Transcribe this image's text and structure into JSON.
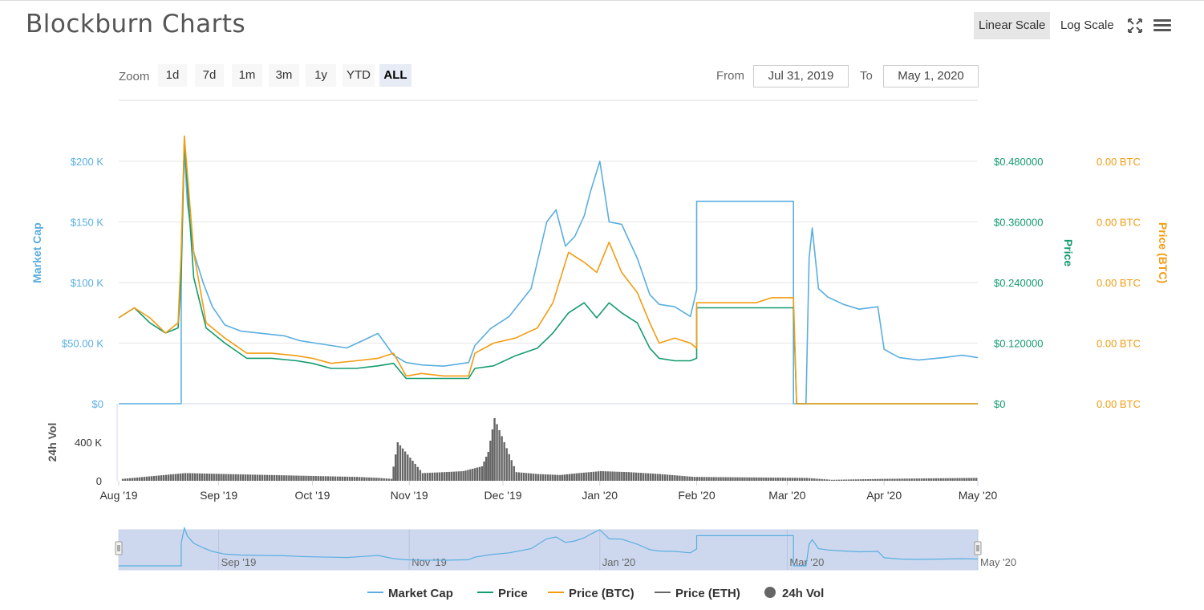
{
  "header": {
    "title": "Blockburn Charts",
    "linear_scale": "Linear Scale",
    "log_scale": "Log Scale",
    "fullscreen_icon": "fullscreen-icon",
    "menu_icon": "hamburger-menu-icon"
  },
  "range_selector": {
    "zoom_label": "Zoom",
    "buttons": [
      "1d",
      "7d",
      "1m",
      "3m",
      "1y",
      "YTD",
      "ALL"
    ],
    "selected": "ALL",
    "from_label": "From",
    "from_value": "Jul 31, 2019",
    "to_label": "To",
    "to_value": "May 1, 2020"
  },
  "colors": {
    "market_cap": "#5aaee0",
    "price": "#139b6d",
    "price_btc": "#f39c12",
    "price_eth": "#666666",
    "vol": "#666666",
    "navigator_fill": "#cdd8ee"
  },
  "chart_data": {
    "type": "line",
    "x_axis": {
      "start": "2019-07-31",
      "end": "2020-05-01",
      "tick_labels": [
        "Aug '19",
        "Sep '19",
        "Oct '19",
        "Nov '19",
        "Dec '19",
        "Jan '20",
        "Feb '20",
        "Mar '20",
        "Apr '20",
        "May '20"
      ]
    },
    "y_axes": {
      "market_cap": {
        "title": "Market Cap",
        "ticks": [
          "$0",
          "$50.00 K",
          "$100 K",
          "$150 K",
          "$200 K"
        ],
        "range": [
          0,
          200000
        ]
      },
      "price": {
        "title": "Price",
        "ticks": [
          "$0",
          "$0.120000",
          "$0.240000",
          "$0.360000",
          "$0.480000"
        ],
        "range": [
          0,
          0.48
        ]
      },
      "price_btc": {
        "title": "Price (BTC)",
        "ticks": [
          "0.00 BTC",
          "0.00 BTC",
          "0.00 BTC",
          "0.00 BTC",
          "0.00 BTC"
        ]
      },
      "vol": {
        "title": "24h Vol",
        "ticks": [
          "0",
          "400 K"
        ],
        "range": [
          0,
          800000
        ]
      }
    },
    "series": [
      {
        "name": "Market Cap",
        "key": "market_cap",
        "x": [
          "2019-07-31",
          "2019-08-20",
          "2019-08-20",
          "2019-08-21",
          "2019-08-22",
          "2019-08-24",
          "2019-08-27",
          "2019-08-30",
          "2019-09-03",
          "2019-09-08",
          "2019-09-15",
          "2019-09-22",
          "2019-09-27",
          "2019-10-02",
          "2019-10-07",
          "2019-10-12",
          "2019-10-17",
          "2019-10-22",
          "2019-10-27",
          "2019-10-31",
          "2019-11-05",
          "2019-11-12",
          "2019-11-20",
          "2019-11-22",
          "2019-11-27",
          "2019-12-03",
          "2019-12-10",
          "2019-12-15",
          "2019-12-18",
          "2019-12-21",
          "2019-12-24",
          "2019-12-27",
          "2019-12-29",
          "2020-01-01",
          "2020-01-04",
          "2020-01-08",
          "2020-01-13",
          "2020-01-17",
          "2020-01-20",
          "2020-01-25",
          "2020-01-30",
          "2020-02-01",
          "2020-02-01",
          "2020-03-03",
          "2020-03-03",
          "2020-03-07",
          "2020-03-08",
          "2020-03-09",
          "2020-03-11",
          "2020-03-14",
          "2020-03-19",
          "2020-03-24",
          "2020-03-30",
          "2020-04-01",
          "2020-04-03",
          "2020-04-06",
          "2020-04-12",
          "2020-04-20",
          "2020-04-26",
          "2020-05-01"
        ],
        "y": [
          0,
          0,
          125000,
          210000,
          165000,
          125000,
          100000,
          80000,
          65000,
          60000,
          58000,
          56000,
          52000,
          50000,
          48000,
          46000,
          52000,
          58000,
          40000,
          34000,
          32000,
          31000,
          34000,
          48000,
          62000,
          72000,
          95000,
          150000,
          160000,
          130000,
          138000,
          155000,
          175000,
          200000,
          150000,
          148000,
          120000,
          90000,
          82000,
          80000,
          72000,
          94000,
          167000,
          167000,
          0,
          0,
          120000,
          145000,
          95000,
          88000,
          82000,
          78000,
          80000,
          45000,
          42000,
          38000,
          36000,
          38000,
          40000,
          38000
        ]
      },
      {
        "name": "Price",
        "key": "price",
        "x": [
          "2019-07-31",
          "2019-08-05",
          "2019-08-10",
          "2019-08-15",
          "2019-08-19",
          "2019-08-20",
          "2019-08-21",
          "2019-08-24",
          "2019-08-28",
          "2019-09-03",
          "2019-09-10",
          "2019-09-18",
          "2019-09-26",
          "2019-10-01",
          "2019-10-07",
          "2019-10-15",
          "2019-10-22",
          "2019-10-27",
          "2019-10-31",
          "2019-11-05",
          "2019-11-12",
          "2019-11-20",
          "2019-11-22",
          "2019-11-28",
          "2019-12-05",
          "2019-12-12",
          "2019-12-17",
          "2019-12-22",
          "2019-12-27",
          "2019-12-31",
          "2020-01-04",
          "2020-01-08",
          "2020-01-13",
          "2020-01-17",
          "2020-01-20",
          "2020-01-25",
          "2020-01-30",
          "2020-02-01",
          "2020-02-01",
          "2020-03-03",
          "2020-03-04",
          "2020-05-01"
        ],
        "y": [
          0.17,
          0.19,
          0.16,
          0.14,
          0.15,
          0.25,
          0.52,
          0.25,
          0.15,
          0.12,
          0.09,
          0.09,
          0.085,
          0.08,
          0.07,
          0.07,
          0.075,
          0.08,
          0.05,
          0.05,
          0.05,
          0.05,
          0.07,
          0.075,
          0.095,
          0.11,
          0.14,
          0.18,
          0.2,
          0.17,
          0.2,
          0.18,
          0.16,
          0.11,
          0.09,
          0.085,
          0.085,
          0.09,
          0.19,
          0.19,
          0.0,
          0.0
        ]
      },
      {
        "name": "Price (BTC)",
        "key": "price_btc",
        "x": [
          "2019-07-31",
          "2019-08-05",
          "2019-08-10",
          "2019-08-15",
          "2019-08-19",
          "2019-08-20",
          "2019-08-21",
          "2019-08-24",
          "2019-08-28",
          "2019-09-03",
          "2019-09-10",
          "2019-09-18",
          "2019-09-26",
          "2019-10-01",
          "2019-10-07",
          "2019-10-15",
          "2019-10-22",
          "2019-10-27",
          "2019-10-31",
          "2019-11-05",
          "2019-11-12",
          "2019-11-20",
          "2019-11-22",
          "2019-11-28",
          "2019-12-05",
          "2019-12-12",
          "2019-12-17",
          "2019-12-22",
          "2019-12-27",
          "2019-12-31",
          "2020-01-04",
          "2020-01-08",
          "2020-01-13",
          "2020-01-17",
          "2020-01-20",
          "2020-01-25",
          "2020-01-30",
          "2020-02-01",
          "2020-02-01",
          "2020-02-20",
          "2020-02-25",
          "2020-03-03",
          "2020-03-04",
          "2020-05-01"
        ],
        "y": [
          0.17,
          0.19,
          0.17,
          0.14,
          0.16,
          0.3,
          0.53,
          0.3,
          0.16,
          0.13,
          0.1,
          0.1,
          0.095,
          0.09,
          0.08,
          0.085,
          0.09,
          0.1,
          0.055,
          0.06,
          0.055,
          0.055,
          0.1,
          0.12,
          0.13,
          0.15,
          0.2,
          0.3,
          0.28,
          0.26,
          0.32,
          0.26,
          0.22,
          0.16,
          0.12,
          0.13,
          0.12,
          0.11,
          0.2,
          0.2,
          0.21,
          0.21,
          0.0,
          0.0
        ]
      },
      {
        "name": "Price (ETH)",
        "key": "price_eth",
        "x": [],
        "y": []
      },
      {
        "name": "24h Vol",
        "key": "vol",
        "x": [
          "2019-08-01",
          "2019-08-21",
          "2019-09-03",
          "2019-09-17",
          "2019-10-01",
          "2019-10-15",
          "2019-10-22",
          "2019-10-26",
          "2019-10-28",
          "2019-11-05",
          "2019-11-12",
          "2019-11-18",
          "2019-11-24",
          "2019-11-26",
          "2019-11-28",
          "2019-12-05",
          "2019-12-12",
          "2019-12-19",
          "2019-12-25",
          "2020-01-01",
          "2020-01-10",
          "2020-01-20",
          "2020-01-31",
          "2020-03-07",
          "2020-03-15",
          "2020-04-01",
          "2020-04-15",
          "2020-05-01"
        ],
        "y": [
          20000,
          80000,
          70000,
          60000,
          50000,
          40000,
          30000,
          20000,
          400000,
          80000,
          90000,
          100000,
          150000,
          300000,
          650000,
          90000,
          70000,
          60000,
          80000,
          100000,
          90000,
          70000,
          40000,
          30000,
          10000,
          20000,
          25000,
          30000
        ]
      }
    ],
    "navigator": {
      "tick_labels": [
        "Sep '19",
        "Nov '19",
        "Jan '20",
        "Mar '20",
        "May '20"
      ]
    }
  }
}
